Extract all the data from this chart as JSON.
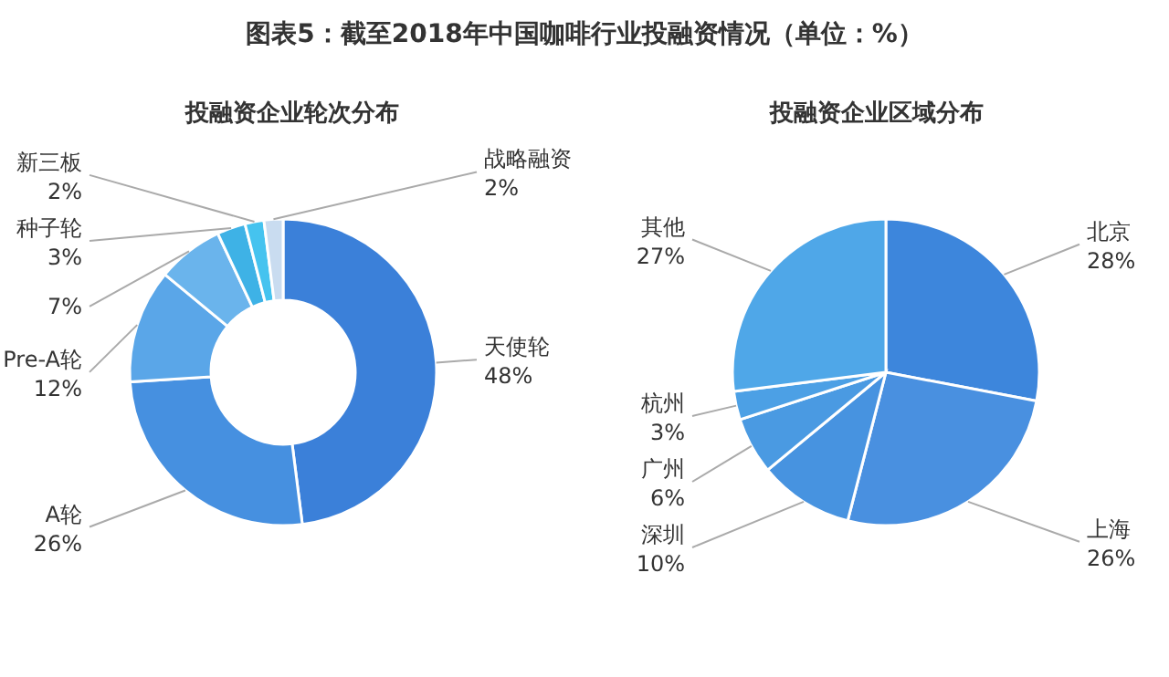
{
  "chart_data": [
    {
      "type": "donut",
      "title": "投融资企业轮次分布",
      "annotations": [
        "图表5：截至2018年中国咖啡行业投融资情况（单位：%）"
      ],
      "categories": [
        "天使轮",
        "A轮",
        "Pre-A轮",
        null,
        "种子轮",
        "新三板",
        "战略融资"
      ],
      "values": [
        48,
        26,
        12,
        7,
        3,
        2,
        2
      ],
      "value_labels": [
        "48%",
        "26%",
        "12%",
        "7%",
        "3%",
        "2%",
        "2%"
      ],
      "colors": [
        "#3b80d9",
        "#4690e0",
        "#5aa6e8",
        "#6ab4ec",
        "#3eb2e6",
        "#45c3ef",
        "#c9dcf0"
      ],
      "legend": false
    },
    {
      "type": "pie",
      "title": "投融资企业区域分布",
      "categories": [
        "北京",
        "上海",
        "深圳",
        "广州",
        "杭州",
        "其他"
      ],
      "values": [
        28,
        26,
        10,
        6,
        3,
        27
      ],
      "value_labels": [
        "28%",
        "26%",
        "10%",
        "6%",
        "3%",
        "27%"
      ],
      "colors": [
        "#3d86dc",
        "#4990e0",
        "#4793e0",
        "#4a9ae2",
        "#4ca0e5",
        "#4fa7e8"
      ],
      "legend": false
    }
  ]
}
